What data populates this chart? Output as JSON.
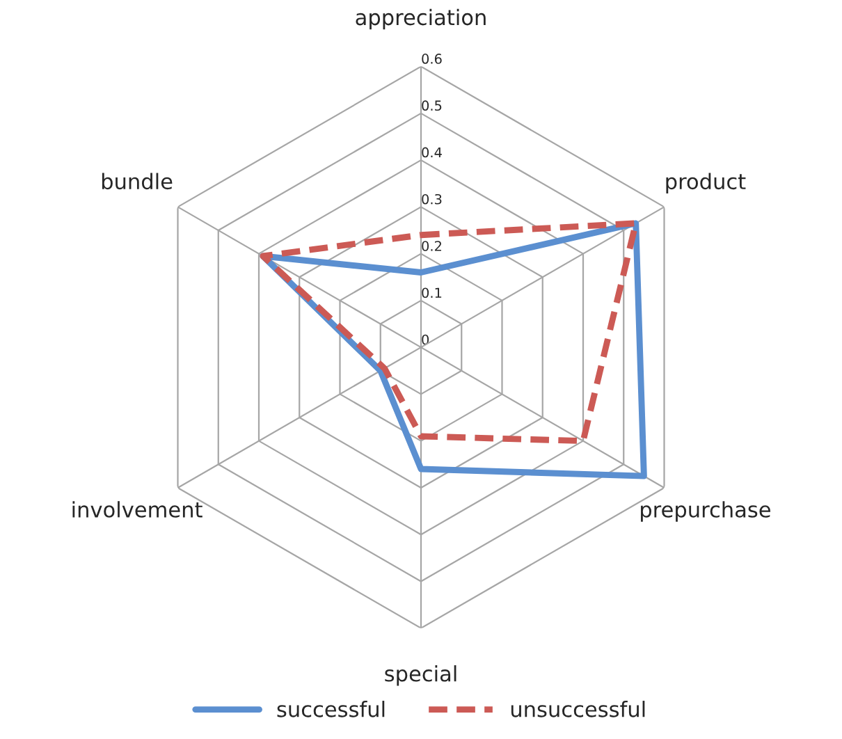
{
  "chart_data": {
    "type": "radar",
    "categories": [
      "appreciation",
      "product",
      "prepurchase",
      "special",
      "involvement",
      "bundle"
    ],
    "series": [
      {
        "name": "successful",
        "color": "#5b8fd0",
        "values": [
          0.16,
          0.53,
          0.55,
          0.26,
          0.1,
          0.39
        ],
        "line_style": "solid"
      },
      {
        "name": "unsuccessful",
        "color": "#cc5a55",
        "values": [
          0.24,
          0.53,
          0.4,
          0.19,
          0.09,
          0.39
        ],
        "line_style": "dashed"
      }
    ],
    "ylim": [
      0,
      0.6
    ],
    "yticks": [
      0,
      0.1,
      0.2,
      0.3,
      0.4,
      0.5,
      0.6
    ],
    "grid": true,
    "legend": "bottom",
    "marker": "none"
  }
}
